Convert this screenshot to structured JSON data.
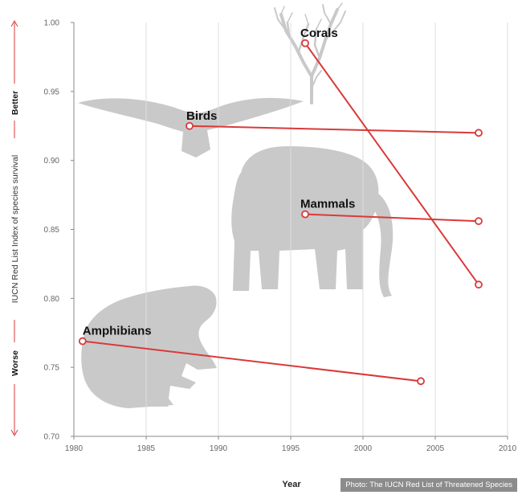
{
  "chart_data": {
    "type": "line",
    "xlabel": "Year",
    "ylabel": "IUCN Red List Index of species survival",
    "ylabel_top": "Better",
    "ylabel_bottom": "Worse",
    "xlim": [
      1980,
      2010
    ],
    "ylim": [
      0.7,
      1.0
    ],
    "xticks": [
      "1980",
      "1985",
      "1990",
      "1995",
      "2000",
      "2005",
      "2010"
    ],
    "yticks": [
      "0.70",
      "0.75",
      "0.80",
      "0.85",
      "0.90",
      "0.95",
      "1.00"
    ],
    "grid": "vertical",
    "series": [
      {
        "name": "Corals",
        "x": [
          1996,
          2008
        ],
        "y": [
          0.985,
          0.81
        ]
      },
      {
        "name": "Birds",
        "x": [
          1988,
          2008
        ],
        "y": [
          0.925,
          0.92
        ]
      },
      {
        "name": "Mammals",
        "x": [
          1996,
          2008
        ],
        "y": [
          0.861,
          0.856
        ]
      },
      {
        "name": "Amphibians",
        "x": [
          1980.6,
          2004
        ],
        "y": [
          0.769,
          0.74
        ]
      }
    ],
    "line_color": "#d93a3a",
    "silhouette_color": "#c9c9c9",
    "silhouettes": [
      "coral",
      "bird",
      "elephant",
      "frog"
    ]
  },
  "credit": "Photo: The IUCN Red List of Threatened Species"
}
